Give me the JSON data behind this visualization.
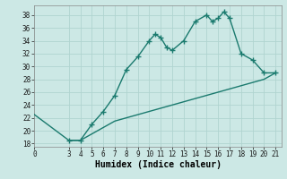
{
  "xlabel": "Humidex (Indice chaleur)",
  "bg_color": "#cce8e5",
  "line_color": "#1a7a6e",
  "grid_color": "#b0d4d0",
  "xlim": [
    0,
    21.5
  ],
  "ylim": [
    17.5,
    39.5
  ],
  "xticks": [
    0,
    3,
    4,
    5,
    6,
    7,
    8,
    9,
    10,
    11,
    12,
    13,
    14,
    15,
    16,
    17,
    18,
    19,
    20,
    21
  ],
  "yticks": [
    18,
    20,
    22,
    24,
    26,
    28,
    30,
    32,
    34,
    36,
    38
  ],
  "curve1_x": [
    3,
    4,
    5,
    6,
    7,
    8,
    9,
    10,
    10.5,
    11,
    11.5,
    12,
    13,
    14,
    15,
    15.5,
    16,
    16.5,
    17,
    18,
    19,
    20,
    21
  ],
  "curve1_y": [
    18.5,
    18.5,
    21,
    23,
    25.5,
    29.5,
    31.5,
    34,
    35,
    34.5,
    33,
    32.5,
    34,
    37,
    38,
    37,
    37.5,
    38.5,
    37.5,
    32,
    31,
    29,
    29
  ],
  "curve2_x": [
    0,
    3,
    4,
    5,
    6,
    7,
    8,
    9,
    10,
    11,
    12,
    13,
    14,
    15,
    16,
    17,
    18,
    19,
    20,
    21
  ],
  "curve2_y": [
    22.5,
    18.5,
    18.5,
    19.5,
    20.5,
    21.5,
    22,
    22.5,
    23,
    23.5,
    24,
    24.5,
    25,
    25.5,
    26,
    26.5,
    27,
    27.5,
    28,
    29
  ],
  "marker": "+",
  "markersize": 5,
  "linewidth": 1.0,
  "tick_fontsize": 5.5,
  "label_fontsize": 7.0
}
